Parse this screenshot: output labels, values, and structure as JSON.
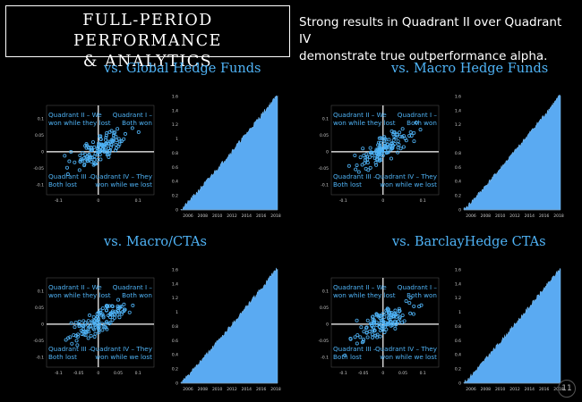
{
  "header": {
    "title_line1": "FULL-PERIOD PERFORMANCE",
    "title_line2": "& ANALYTICS",
    "subtitle_line1": "Strong results in Quadrant II over Quadrant IV",
    "subtitle_line2": "demonstrate true outperformance alpha."
  },
  "colors": {
    "accent": "#4fb3f6",
    "fill": "#5aaaf2",
    "background": "#000000"
  },
  "quadrant_labels": {
    "q2": [
      "Quadrant II – We",
      "won while they lost"
    ],
    "q1": [
      "Quadrant I –",
      "Both won"
    ],
    "q3": [
      "Quadrant III –",
      "Both lost"
    ],
    "q4": [
      "Quadrant IV – They",
      "won while we lost"
    ]
  },
  "panels": [
    {
      "title": "vs. Global Hedge Funds"
    },
    {
      "title": "vs. Macro Hedge Funds"
    },
    {
      "title": "vs. Macro/CTAs"
    },
    {
      "title": "vs. BarclayHedge CTAs"
    }
  ],
  "page_number": "11",
  "chart_data": [
    {
      "type": "scatter",
      "panel": "vs. Global Hedge Funds",
      "x_ticks": [
        "-0.1",
        "0",
        "0.1"
      ],
      "y_ticks": [
        "0.1",
        "0.05",
        "0",
        "-0.05",
        "-0.1"
      ],
      "xlim": [
        -0.13,
        0.14
      ],
      "ylim": [
        -0.13,
        0.14
      ]
    },
    {
      "type": "area",
      "panel": "vs. Global Hedge Funds",
      "x_ticks": [
        "2006",
        "2008",
        "2010",
        "2012",
        "2014",
        "2016",
        "2018"
      ],
      "y_ticks": [
        "1.6",
        "1.4",
        "1.2",
        "1",
        "0.8",
        "0.6",
        "0.4",
        "0.2",
        "0"
      ],
      "ylim": [
        0,
        1.7
      ]
    },
    {
      "type": "scatter",
      "panel": "vs. Macro Hedge Funds",
      "x_ticks": [
        "-0.1",
        "0",
        "0.1"
      ],
      "y_ticks": [
        "0.1",
        "0.05",
        "0",
        "-0.05",
        "-0.1"
      ],
      "xlim": [
        -0.13,
        0.14
      ],
      "ylim": [
        -0.13,
        0.14
      ]
    },
    {
      "type": "area",
      "panel": "vs. Macro Hedge Funds",
      "x_ticks": [
        "2006",
        "2008",
        "2010",
        "2012",
        "2014",
        "2016",
        "2018"
      ],
      "y_ticks": [
        "1.6",
        "1.4",
        "1.2",
        "1",
        "0.8",
        "0.6",
        "0.4",
        "0.2",
        "0"
      ],
      "ylim": [
        0,
        1.7
      ]
    },
    {
      "type": "scatter",
      "panel": "vs. Macro/CTAs",
      "x_ticks": [
        "-0.1",
        "-0.05",
        "0",
        "0.05",
        "0.1"
      ],
      "y_ticks": [
        "0.1",
        "0.05",
        "0",
        "-0.05",
        "-0.1"
      ],
      "xlim": [
        -0.13,
        0.14
      ],
      "ylim": [
        -0.13,
        0.14
      ]
    },
    {
      "type": "area",
      "panel": "vs. Macro/CTAs",
      "x_ticks": [
        "2006",
        "2008",
        "2010",
        "2012",
        "2014",
        "2016",
        "2018"
      ],
      "y_ticks": [
        "1.6",
        "1.4",
        "1.2",
        "1",
        "0.8",
        "0.6",
        "0.4",
        "0.2",
        "0"
      ],
      "ylim": [
        0,
        1.7
      ]
    },
    {
      "type": "scatter",
      "panel": "vs. BarclayHedge CTAs",
      "x_ticks": [
        "-0.1",
        "-0.05",
        "0",
        "0.05",
        "0.1"
      ],
      "y_ticks": [
        "0.1",
        "0.05",
        "0",
        "-0.05",
        "-0.1"
      ],
      "xlim": [
        -0.13,
        0.14
      ],
      "ylim": [
        -0.13,
        0.14
      ]
    },
    {
      "type": "area",
      "panel": "vs. BarclayHedge CTAs",
      "x_ticks": [
        "2006",
        "2008",
        "2010",
        "2012",
        "2014",
        "2016",
        "2018"
      ],
      "y_ticks": [
        "1.6",
        "1.4",
        "1.2",
        "1",
        "0.8",
        "0.6",
        "0.4",
        "0.2",
        "0"
      ],
      "ylim": [
        0,
        1.7
      ]
    }
  ]
}
